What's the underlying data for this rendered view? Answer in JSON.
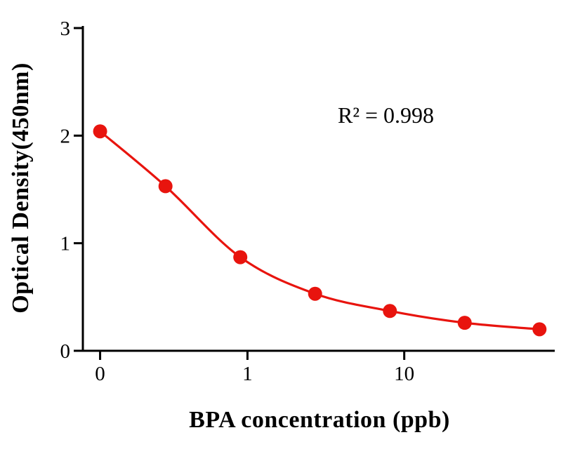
{
  "chart_data": {
    "type": "scatter",
    "title": "",
    "xlabel": "BPA concentration (ppb)",
    "ylabel": "Optical Density(450nm)",
    "annotation": "R² = 0.998",
    "x_scale": "log",
    "line_style": "smooth-fit",
    "x": [
      0,
      0.3,
      0.9,
      2.7,
      8.1,
      24.3,
      72.9
    ],
    "y": [
      2.04,
      1.53,
      0.87,
      0.53,
      0.37,
      0.26,
      0.2
    ],
    "zero_log_pos": -0.94,
    "x_log_range": [
      -1.05,
      1.96
    ],
    "y_range": [
      0,
      3
    ],
    "x_ticks": [
      {
        "label": "0",
        "log_pos": -0.94
      },
      {
        "label": "1",
        "log_pos": 0
      },
      {
        "label": "10",
        "log_pos": 1
      }
    ],
    "y_ticks": [
      {
        "label": "0",
        "value": 0
      },
      {
        "label": "1",
        "value": 1
      },
      {
        "label": "2",
        "value": 2
      },
      {
        "label": "3",
        "value": 3
      }
    ],
    "colors": {
      "series": "#e8140e",
      "axis": "#000000",
      "background": "#ffffff"
    }
  }
}
